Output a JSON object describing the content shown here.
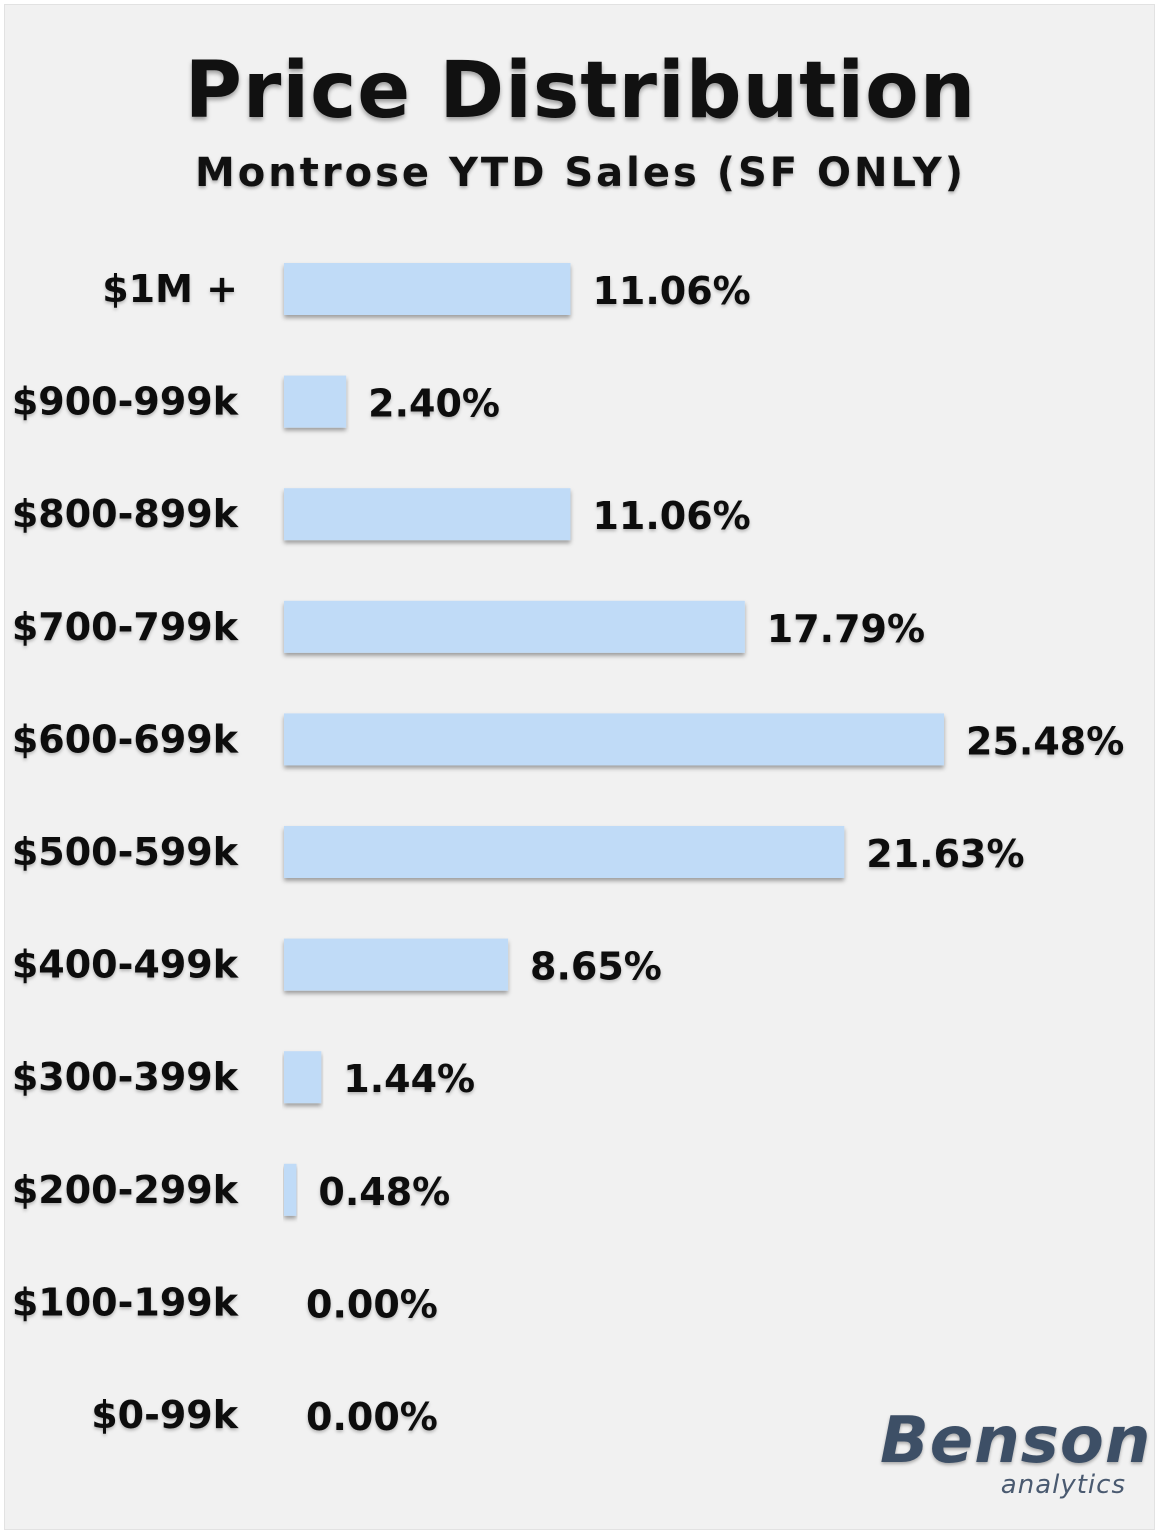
{
  "chart_data": {
    "type": "bar",
    "orientation": "horizontal",
    "title": "Price Distribution",
    "subtitle": "Montrose YTD Sales (SF ONLY)",
    "categories": [
      "$1M +",
      "$900-999k",
      "$800-899k",
      "$700-799k",
      "$600-699k",
      "$500-599k",
      "$400-499k",
      "$300-399k",
      "$200-299k",
      "$100-199k",
      "$0-99k"
    ],
    "values": [
      11.06,
      2.4,
      11.06,
      17.79,
      25.48,
      21.63,
      8.65,
      1.44,
      0.48,
      0.0,
      0.0
    ],
    "value_labels": [
      "11.06%",
      "2.40%",
      "11.06%",
      "17.79%",
      "25.48%",
      "21.63%",
      "8.65%",
      "1.44%",
      "0.48%",
      "0.00%",
      "0.00%"
    ],
    "xlim": [
      0,
      25.48
    ],
    "grid": false,
    "bar_color": "#c0dbf7"
  },
  "logo": {
    "brand": "Benson",
    "sub": "analytics"
  }
}
